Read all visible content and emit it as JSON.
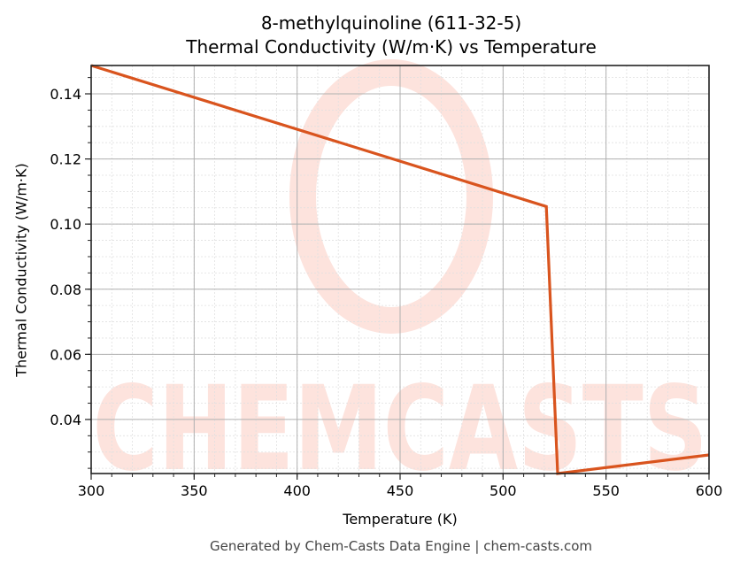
{
  "chart_data": {
    "type": "line",
    "title": "8-methylquinoline (611-32-5)",
    "subtitle": "Thermal Conductivity (W/m·K) vs Temperature",
    "xlabel": "Temperature (K)",
    "ylabel": "Thermal Conductivity (W/m·K)",
    "xlim": [
      300,
      600
    ],
    "ylim": [
      0.0234,
      0.1487
    ],
    "x_ticks": [
      300,
      350,
      400,
      450,
      500,
      550,
      600
    ],
    "y_ticks": [
      0.04,
      0.06,
      0.08,
      0.1,
      0.12,
      0.14
    ],
    "x_tick_labels": [
      "300",
      "350",
      "400",
      "450",
      "500",
      "550",
      "600"
    ],
    "y_tick_labels": [
      "0.04",
      "0.06",
      "0.08",
      "0.10",
      "0.12",
      "0.14"
    ],
    "grid": true,
    "minor_grid": true,
    "legend": null,
    "series": [
      {
        "name": "Thermal Conductivity",
        "color": "#d9541e",
        "x": [
          300,
          521,
          526.5,
          600
        ],
        "y": [
          0.1487,
          0.1054,
          0.0234,
          0.0291
        ]
      }
    ],
    "watermark": "CHEMCASTS"
  },
  "header": {
    "title": "8-methylquinoline (611-32-5)",
    "subtitle": "Thermal Conductivity (W/m·K) vs Temperature"
  },
  "axes": {
    "xlabel": "Temperature (K)",
    "ylabel": "Thermal Conductivity (W/m·K)"
  },
  "footer": {
    "text": "Generated by Chem-Casts Data Engine | chem-casts.com"
  },
  "colors": {
    "line": "#d9541e",
    "watermark": "#fde3dd",
    "major_grid": "#b0b0b0",
    "minor_grid": "#e0e0e0"
  }
}
